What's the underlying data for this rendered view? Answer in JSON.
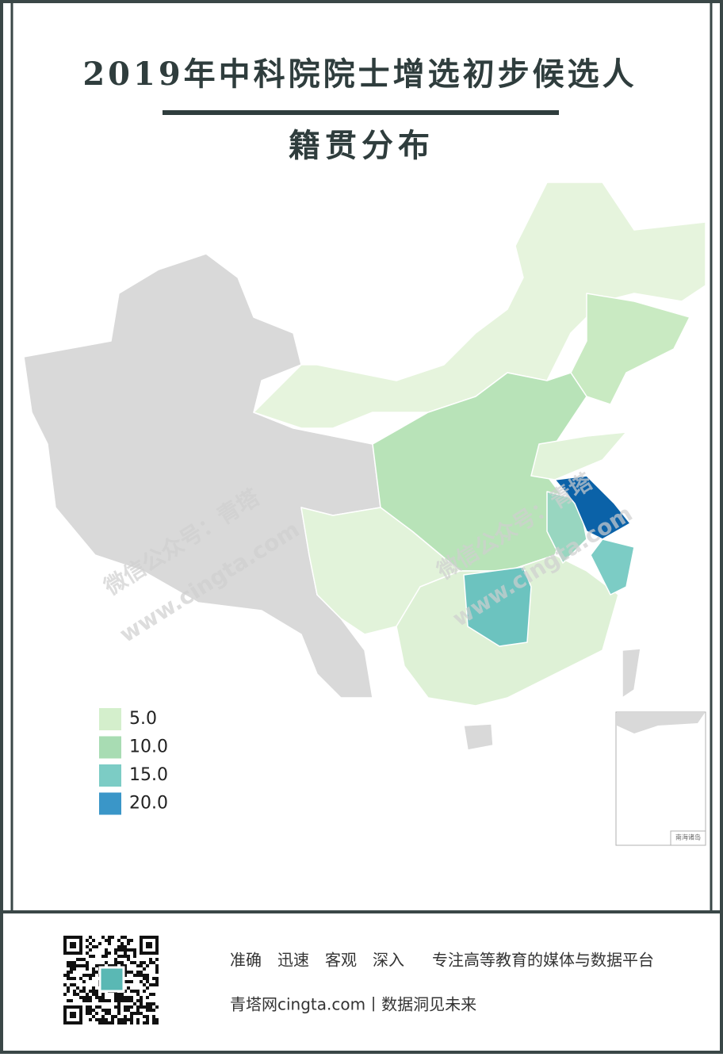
{
  "title": "2019年中科院院士增选初步候选人",
  "subtitle": "籍贯分布",
  "legend": [
    {
      "value": 5,
      "label": "5.0",
      "color": "#d4efcc"
    },
    {
      "value": 10,
      "label": "10.0",
      "color": "#a8dcb3"
    },
    {
      "value": 15,
      "label": "15.0",
      "color": "#7cccc5"
    },
    {
      "value": 20,
      "label": "20.0",
      "color": "#3a96c8"
    }
  ],
  "watermark": {
    "account": "微信公众号：青塔",
    "site": "www.cingta.com"
  },
  "inset": {
    "label": "南海诸岛"
  },
  "footer": {
    "slogan": "准确　迅速　客观　深入",
    "tagline": "专注高等教育的媒体与数据平台",
    "site": "青塔网cingta.com丨数据洞见未来"
  }
}
